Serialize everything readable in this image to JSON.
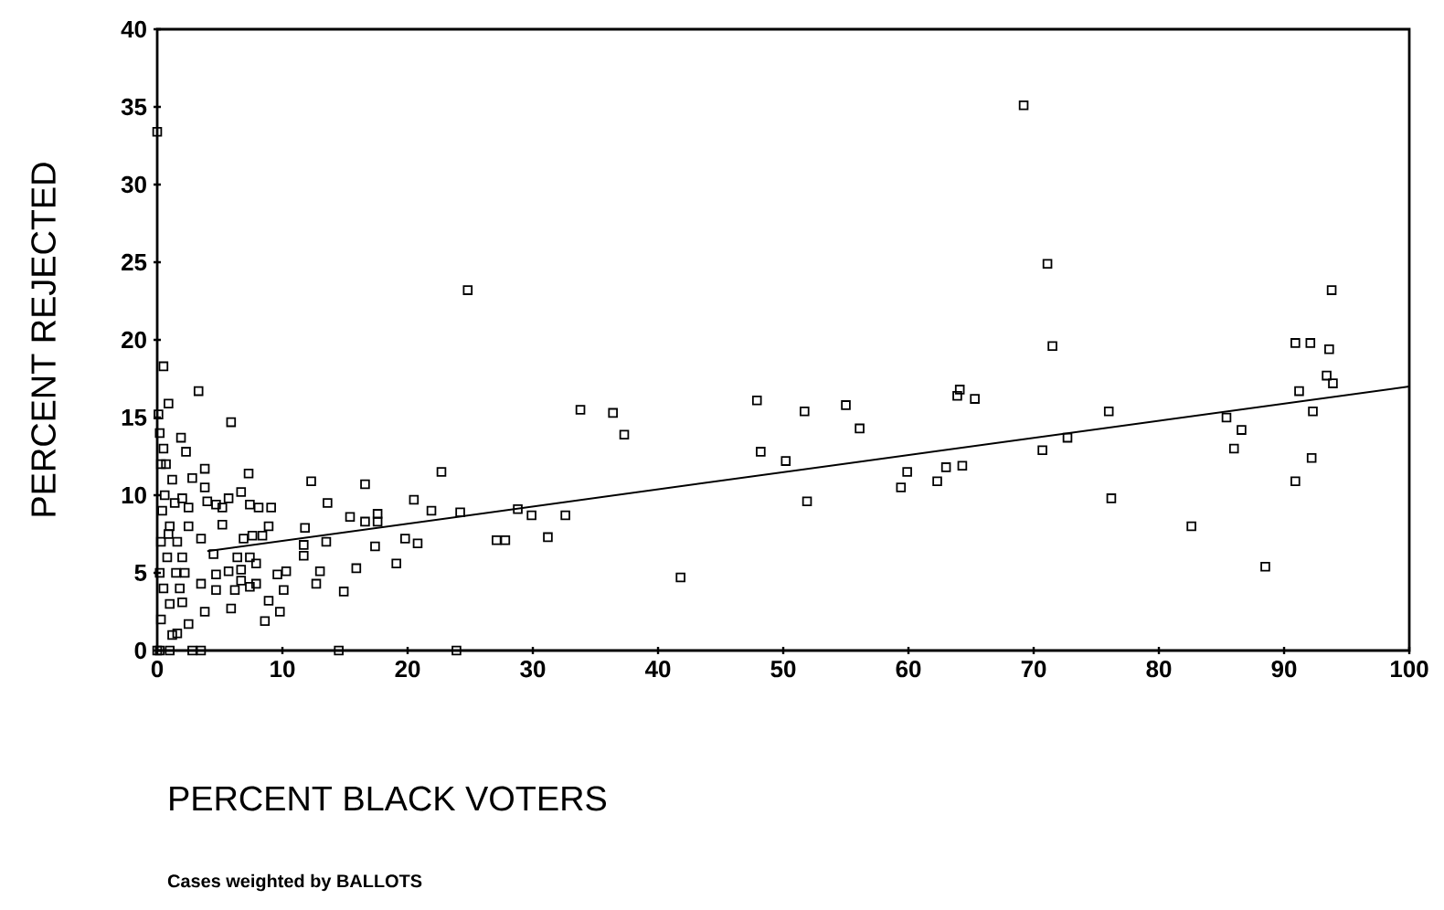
{
  "chart_data": {
    "type": "scatter",
    "xlabel": "PERCENT BLACK VOTERS",
    "ylabel": "PERCENT REJECTED",
    "annotations": [
      "Cases weighted by BALLOTS"
    ],
    "xlim": [
      0,
      100
    ],
    "ylim": [
      0,
      40
    ],
    "xticks": [
      0,
      10,
      20,
      30,
      40,
      50,
      60,
      70,
      80,
      90,
      100
    ],
    "yticks": [
      0,
      5,
      10,
      15,
      20,
      25,
      30,
      35,
      40
    ],
    "series": [
      {
        "color": "#000000",
        "marker": "square",
        "x": [
          33.8,
          36.4,
          37.3,
          28.8,
          29.9,
          27.8,
          27.1,
          31.2,
          32.6,
          41.8,
          47.9,
          48.2,
          50.2,
          51.7,
          51.9,
          55.0,
          56.1,
          59.4,
          59.9,
          62.3,
          63.0,
          64.3,
          64.1,
          63.9,
          65.3,
          71.5,
          70.7,
          72.7,
          76.0,
          76.2,
          82.6,
          85.4,
          86.6,
          86.0,
          88.5,
          90.9,
          92.1,
          91.2,
          90.9,
          92.3,
          92.2,
          93.8,
          93.6,
          93.4,
          93.9,
          69.2,
          71.1,
          24.8,
          0,
          0.5,
          3.3,
          5.9,
          0.9,
          1.9,
          2.3,
          3.8,
          7.3,
          3.8,
          12.3,
          16.6,
          22.7,
          20.5,
          21.9,
          24.2,
          13.6,
          15.4,
          17.6,
          16.6,
          17.6,
          11.8,
          13.5,
          17.4,
          19.8,
          20.8,
          19.1,
          15.9,
          14.9,
          13.0,
          12.7,
          11.7,
          11.7,
          10.3,
          10.1,
          8.9,
          9.8,
          8.6,
          9.6,
          7.9,
          5.9,
          3.8,
          8.4,
          8.9,
          9.1,
          8.1,
          7.4,
          6.7,
          5.7,
          4.7,
          5.2,
          4.0,
          2.8,
          5.2,
          6.9,
          7.6,
          4.5,
          6.4,
          7.4,
          7.9,
          3.5,
          2.5,
          2.5,
          2.0,
          4.7,
          5.7,
          6.7,
          6.7,
          4.7,
          6.2,
          7.4,
          3.5,
          2.0,
          2.5,
          1.6,
          0.2,
          0.3,
          0.5,
          0.2,
          0.8,
          0.3,
          1.0,
          0.4,
          0.6,
          1.2,
          0.3,
          0.5,
          1.0,
          1.5,
          1.6,
          1.4,
          0.1,
          0.2,
          0.7,
          1.8,
          1.2,
          2.0,
          2.2,
          0.9,
          0,
          1,
          2.8,
          3.5,
          14.5,
          23.9
        ],
        "values": [
          15.5,
          15.3,
          13.9,
          9.1,
          8.7,
          7.1,
          7.1,
          7.3,
          8.7,
          4.7,
          16.1,
          12.8,
          12.2,
          15.4,
          9.6,
          15.8,
          14.3,
          10.5,
          11.5,
          10.9,
          11.8,
          11.9,
          16.8,
          16.4,
          16.2,
          19.6,
          12.9,
          13.7,
          15.4,
          9.8,
          8.0,
          15.0,
          14.2,
          13.0,
          5.4,
          19.8,
          19.8,
          16.7,
          10.9,
          15.4,
          12.4,
          23.2,
          19.4,
          17.7,
          17.2,
          35.1,
          24.9,
          23.2,
          33.4,
          18.3,
          16.7,
          14.7,
          15.9,
          13.7,
          12.8,
          11.7,
          11.4,
          10.5,
          10.9,
          10.7,
          11.5,
          9.7,
          9.0,
          8.9,
          9.5,
          8.6,
          8.8,
          8.3,
          8.3,
          7.9,
          7.0,
          6.7,
          7.2,
          6.9,
          5.6,
          5.3,
          3.8,
          5.1,
          4.3,
          6.1,
          6.8,
          5.1,
          3.9,
          3.2,
          2.5,
          1.9,
          4.9,
          4.3,
          2.7,
          2.5,
          7.4,
          8.0,
          9.2,
          9.2,
          9.4,
          10.2,
          9.8,
          9.4,
          9.2,
          9.6,
          11.1,
          8.1,
          7.2,
          7.4,
          6.2,
          6.0,
          6.0,
          5.6,
          7.2,
          8.0,
          9.2,
          9.8,
          4.9,
          5.1,
          5.2,
          4.5,
          3.9,
          3.9,
          4.1,
          4.3,
          3.1,
          1.7,
          1.1,
          0,
          2,
          4,
          5,
          6,
          7,
          8,
          9,
          10,
          11,
          12,
          13,
          3,
          5,
          7,
          9.5,
          15.2,
          14,
          12,
          4,
          1,
          6,
          5,
          7.5,
          0,
          0,
          0,
          0,
          0,
          0
        ]
      },
      {
        "type": "line",
        "color": "#000000",
        "x": [
          4,
          100
        ],
        "values": [
          6.4,
          17.0
        ]
      }
    ]
  }
}
